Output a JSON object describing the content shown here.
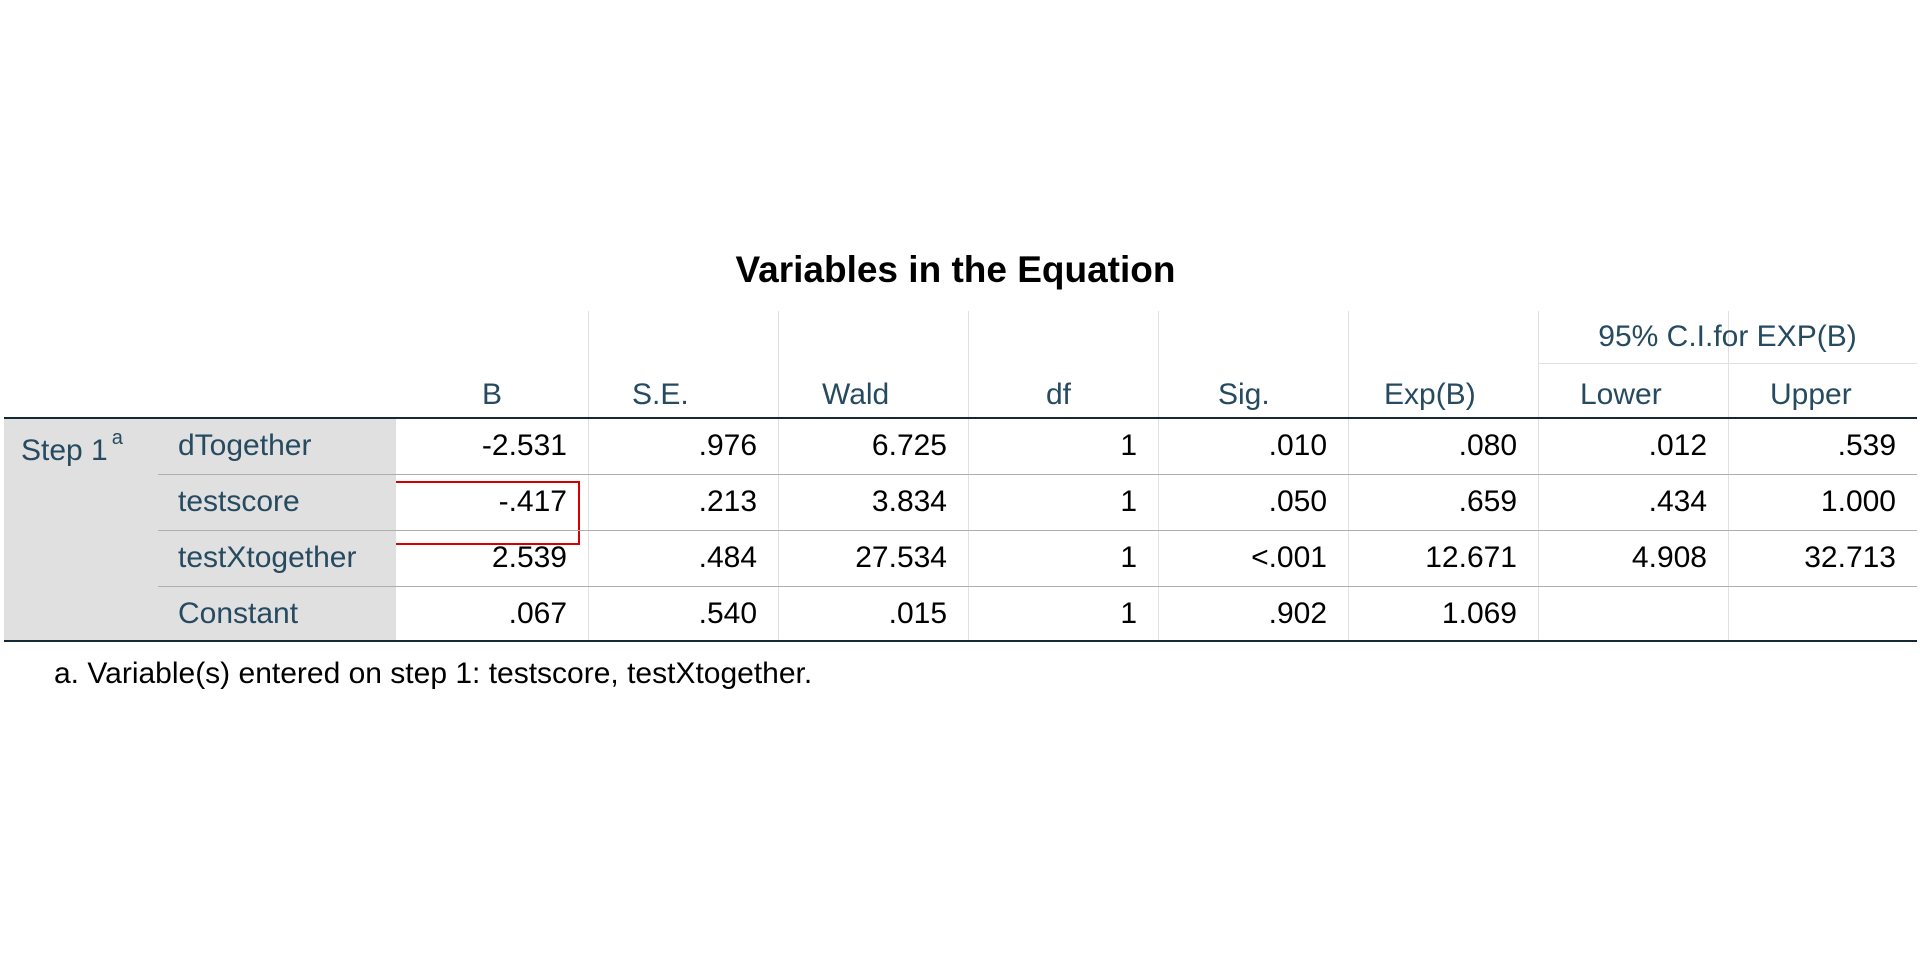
{
  "title": "Variables in the Equation",
  "header": {
    "ci_group": "95% C.I.for EXP(B)",
    "columns": [
      "B",
      "S.E.",
      "Wald",
      "df",
      "Sig.",
      "Exp(B)",
      "Lower",
      "Upper"
    ]
  },
  "step": {
    "label": "Step 1",
    "superscript": "a"
  },
  "rows": [
    {
      "name": "dTogether",
      "values": [
        "-2.531",
        ".976",
        "6.725",
        "1",
        ".010",
        ".080",
        ".012",
        ".539"
      ]
    },
    {
      "name": "testscore",
      "values": [
        "-.417",
        ".213",
        "3.834",
        "1",
        ".050",
        ".659",
        ".434",
        "1.000"
      ]
    },
    {
      "name": "testXtogether",
      "values": [
        "2.539",
        ".484",
        "27.534",
        "1",
        "<.001",
        "12.671",
        "4.908",
        "32.713"
      ]
    },
    {
      "name": "Constant",
      "values": [
        ".067",
        ".540",
        ".015",
        "1",
        ".902",
        "1.069",
        "",
        ""
      ]
    }
  ],
  "footnote": "a. Variable(s) entered on step 1: testscore, testXtogether.",
  "colors": {
    "header_text": "#264a60",
    "step_bg": "#e0e0e0",
    "highlight_border": "#d40000"
  }
}
